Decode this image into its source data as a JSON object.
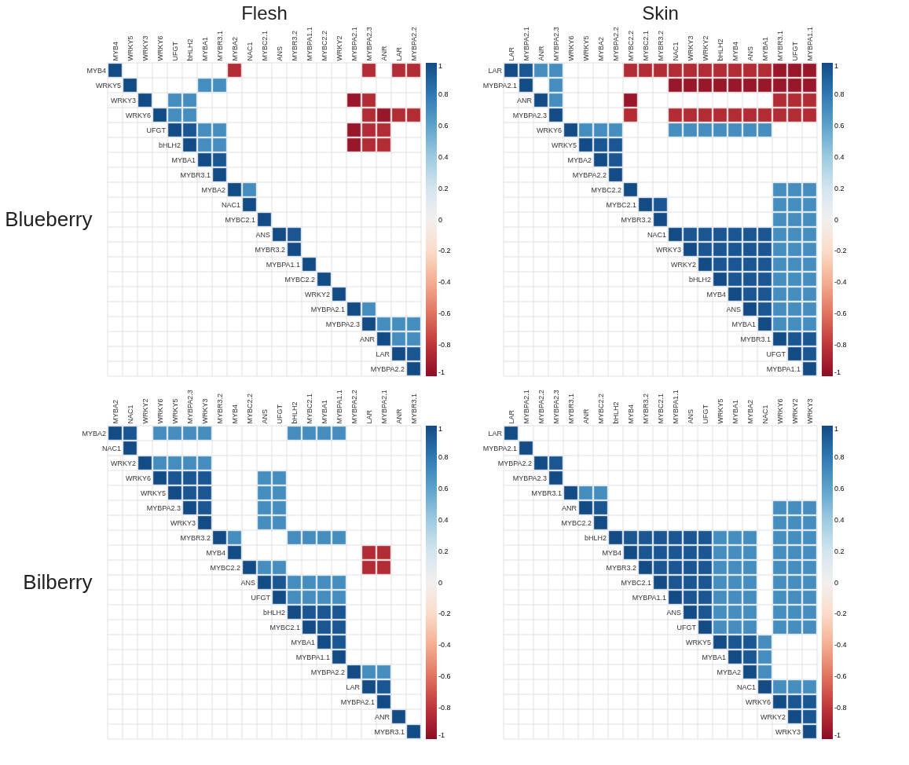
{
  "chart_data": [
    {
      "type": "heatmap",
      "title": "Flesh",
      "ylabel": "Blueberry",
      "grid": true,
      "clim": [
        -1,
        1
      ],
      "cticks": [
        -1,
        -0.8,
        -0.6,
        -0.4,
        -0.2,
        0,
        0.2,
        0.4,
        0.6,
        0.8,
        1
      ],
      "categories": [
        "MYB4",
        "WRKY5",
        "WRKY3",
        "WRKY6",
        "UFGT",
        "bHLH2",
        "MYBA1",
        "MYBR3.1",
        "MYBA2",
        "NAC1",
        "MYBC2.1",
        "ANS",
        "MYBR3.2",
        "MYBPA1.1",
        "MYBC2.2",
        "WRKY2",
        "MYBPA2.1",
        "MYBPA2.3",
        "ANR",
        "LAR",
        "MYBPA2.2"
      ],
      "y_categories": [
        "MYB4",
        "WRKY5",
        "WRKY3",
        "WRKY6",
        "UFGT",
        "bHLH2",
        "MYBA1",
        "MYBR3.1",
        "MYBA2",
        "NAC1",
        "MYBC2.1",
        "ANS",
        "MYBR3.2",
        "MYBPA1.1",
        "MYBC2.2",
        "WRKY2",
        "MYBPA2.1",
        "MYBPA2.3",
        "ANR",
        "LAR",
        "MYBPA2.2"
      ],
      "cells": [
        [
          1,
          null,
          null,
          null,
          null,
          null,
          null,
          null,
          -0.85,
          null,
          null,
          null,
          null,
          null,
          null,
          null,
          null,
          -0.85,
          null,
          -0.85,
          -0.85
        ],
        [
          null,
          1,
          null,
          null,
          null,
          null,
          0.7,
          0.7,
          null,
          null,
          null,
          null,
          null,
          null,
          null,
          null,
          null,
          null,
          null,
          null,
          null
        ],
        [
          null,
          null,
          1,
          null,
          0.7,
          0.7,
          null,
          null,
          null,
          null,
          null,
          null,
          null,
          null,
          null,
          null,
          -0.95,
          -0.85,
          null,
          null,
          null
        ],
        [
          null,
          null,
          null,
          1,
          0.7,
          0.7,
          null,
          null,
          null,
          null,
          null,
          null,
          null,
          null,
          null,
          null,
          null,
          -0.85,
          -0.95,
          -0.85,
          -0.85
        ],
        [
          null,
          null,
          null,
          null,
          1,
          0.95,
          0.7,
          0.7,
          null,
          null,
          null,
          null,
          null,
          null,
          null,
          null,
          -0.95,
          -0.85,
          -0.85,
          null,
          null
        ],
        [
          null,
          null,
          null,
          null,
          null,
          1,
          0.7,
          0.7,
          null,
          null,
          null,
          null,
          null,
          null,
          null,
          null,
          -0.95,
          -0.85,
          -0.85,
          null,
          null
        ],
        [
          null,
          null,
          null,
          null,
          null,
          null,
          1,
          0.95,
          null,
          null,
          null,
          null,
          null,
          null,
          null,
          null,
          null,
          null,
          null,
          null,
          null
        ],
        [
          null,
          null,
          null,
          null,
          null,
          null,
          null,
          1,
          null,
          null,
          null,
          null,
          null,
          null,
          null,
          null,
          null,
          null,
          null,
          null,
          null
        ],
        [
          null,
          null,
          null,
          null,
          null,
          null,
          null,
          null,
          1,
          0.7,
          null,
          null,
          null,
          null,
          null,
          null,
          null,
          null,
          null,
          null,
          null
        ],
        [
          null,
          null,
          null,
          null,
          null,
          null,
          null,
          null,
          null,
          1,
          null,
          null,
          null,
          null,
          null,
          null,
          null,
          null,
          null,
          null,
          null
        ],
        [
          null,
          null,
          null,
          null,
          null,
          null,
          null,
          null,
          null,
          null,
          1,
          null,
          null,
          null,
          null,
          null,
          null,
          null,
          null,
          null,
          null
        ],
        [
          null,
          null,
          null,
          null,
          null,
          null,
          null,
          null,
          null,
          null,
          null,
          1,
          0.95,
          null,
          null,
          null,
          null,
          null,
          null,
          null,
          null
        ],
        [
          null,
          null,
          null,
          null,
          null,
          null,
          null,
          null,
          null,
          null,
          null,
          null,
          1,
          null,
          null,
          null,
          null,
          null,
          null,
          null,
          null
        ],
        [
          null,
          null,
          null,
          null,
          null,
          null,
          null,
          null,
          null,
          null,
          null,
          null,
          null,
          1,
          null,
          null,
          null,
          null,
          null,
          null,
          null
        ],
        [
          null,
          null,
          null,
          null,
          null,
          null,
          null,
          null,
          null,
          null,
          null,
          null,
          null,
          null,
          1,
          null,
          null,
          null,
          null,
          null,
          null
        ],
        [
          null,
          null,
          null,
          null,
          null,
          null,
          null,
          null,
          null,
          null,
          null,
          null,
          null,
          null,
          null,
          1,
          null,
          null,
          null,
          null,
          null
        ],
        [
          null,
          null,
          null,
          null,
          null,
          null,
          null,
          null,
          null,
          null,
          null,
          null,
          null,
          null,
          null,
          null,
          1,
          0.7,
          null,
          null,
          null
        ],
        [
          null,
          null,
          null,
          null,
          null,
          null,
          null,
          null,
          null,
          null,
          null,
          null,
          null,
          null,
          null,
          null,
          null,
          1,
          0.7,
          0.7,
          0.7
        ],
        [
          null,
          null,
          null,
          null,
          null,
          null,
          null,
          null,
          null,
          null,
          null,
          null,
          null,
          null,
          null,
          null,
          null,
          null,
          1,
          0.7,
          0.7
        ],
        [
          null,
          null,
          null,
          null,
          null,
          null,
          null,
          null,
          null,
          null,
          null,
          null,
          null,
          null,
          null,
          null,
          null,
          null,
          null,
          1,
          0.95
        ],
        [
          null,
          null,
          null,
          null,
          null,
          null,
          null,
          null,
          null,
          null,
          null,
          null,
          null,
          null,
          null,
          null,
          null,
          null,
          null,
          null,
          1
        ]
      ]
    },
    {
      "type": "heatmap",
      "title": "Skin",
      "grid": true,
      "clim": [
        -1,
        1
      ],
      "cticks": [
        -1,
        -0.8,
        -0.6,
        -0.4,
        -0.2,
        0,
        0.2,
        0.4,
        0.6,
        0.8,
        1
      ],
      "categories": [
        "LAR",
        "MYBPA2.1",
        "ANR",
        "MYBPA2.3",
        "WRKY6",
        "WRKY5",
        "MYBA2",
        "MYBPA2.2",
        "MYBC2.2",
        "MYBC2.1",
        "MYBR3.2",
        "NAC1",
        "WRKY3",
        "WRKY2",
        "bHLH2",
        "MYB4",
        "ANS",
        "MYBA1",
        "MYBR3.1",
        "UFGT",
        "MYBPA1.1"
      ],
      "y_categories": [
        "LAR",
        "MYBPA2.1",
        "ANR",
        "MYBPA2.3",
        "WRKY6",
        "WRKY5",
        "MYBA2",
        "MYBPA2.2",
        "MYBC2.2",
        "MYBC2.1",
        "MYBR3.2",
        "NAC1",
        "WRKY3",
        "WRKY2",
        "bHLH2",
        "MYB4",
        "ANS",
        "MYBA1",
        "MYBR3.1",
        "UFGT",
        "MYBPA1.1"
      ],
      "cells": [
        [
          1,
          0.95,
          0.7,
          0.7,
          null,
          null,
          null,
          null,
          -0.85,
          -0.85,
          -0.85,
          -0.85,
          -0.85,
          -0.85,
          -0.85,
          -0.85,
          -0.85,
          -0.85,
          -0.95,
          -0.95,
          -0.95
        ],
        [
          null,
          1,
          null,
          0.7,
          null,
          null,
          null,
          null,
          null,
          null,
          null,
          -0.95,
          -0.95,
          -0.95,
          -0.95,
          -0.95,
          -0.95,
          -0.95,
          -0.95,
          -0.95,
          -0.95
        ],
        [
          null,
          null,
          1,
          0.7,
          null,
          null,
          null,
          null,
          -0.95,
          null,
          null,
          null,
          null,
          null,
          null,
          null,
          null,
          null,
          -0.85,
          -0.85,
          -0.85
        ],
        [
          null,
          null,
          null,
          1,
          null,
          null,
          null,
          null,
          -0.85,
          null,
          null,
          -0.85,
          -0.85,
          -0.85,
          -0.85,
          -0.85,
          -0.85,
          -0.85,
          -0.85,
          -0.85,
          -0.85
        ],
        [
          null,
          null,
          null,
          null,
          1,
          0.7,
          0.7,
          0.7,
          null,
          null,
          null,
          0.7,
          0.7,
          0.7,
          0.7,
          0.7,
          0.7,
          0.7,
          null,
          null,
          null
        ],
        [
          null,
          null,
          null,
          null,
          null,
          1,
          0.95,
          0.95,
          null,
          null,
          null,
          null,
          null,
          null,
          null,
          null,
          null,
          null,
          null,
          null,
          null
        ],
        [
          null,
          null,
          null,
          null,
          null,
          null,
          1,
          0.95,
          null,
          null,
          null,
          null,
          null,
          null,
          null,
          null,
          null,
          null,
          null,
          null,
          null
        ],
        [
          null,
          null,
          null,
          null,
          null,
          null,
          null,
          1,
          null,
          null,
          null,
          null,
          null,
          null,
          null,
          null,
          null,
          null,
          null,
          null,
          null
        ],
        [
          null,
          null,
          null,
          null,
          null,
          null,
          null,
          null,
          1,
          null,
          null,
          null,
          null,
          null,
          null,
          null,
          null,
          null,
          0.7,
          0.7,
          0.7
        ],
        [
          null,
          null,
          null,
          null,
          null,
          null,
          null,
          null,
          null,
          1,
          0.95,
          null,
          null,
          null,
          null,
          null,
          null,
          null,
          0.7,
          0.7,
          0.7
        ],
        [
          null,
          null,
          null,
          null,
          null,
          null,
          null,
          null,
          null,
          null,
          1,
          null,
          null,
          null,
          null,
          null,
          null,
          null,
          0.7,
          0.7,
          0.7
        ],
        [
          null,
          null,
          null,
          null,
          null,
          null,
          null,
          null,
          null,
          null,
          null,
          1,
          0.95,
          0.95,
          0.95,
          0.95,
          0.95,
          0.95,
          0.7,
          0.7,
          0.7
        ],
        [
          null,
          null,
          null,
          null,
          null,
          null,
          null,
          null,
          null,
          null,
          null,
          null,
          1,
          0.95,
          0.95,
          0.95,
          0.95,
          0.95,
          0.7,
          0.7,
          0.7
        ],
        [
          null,
          null,
          null,
          null,
          null,
          null,
          null,
          null,
          null,
          null,
          null,
          null,
          null,
          1,
          0.95,
          0.95,
          0.95,
          0.95,
          0.7,
          0.7,
          0.7
        ],
        [
          null,
          null,
          null,
          null,
          null,
          null,
          null,
          null,
          null,
          null,
          null,
          null,
          null,
          null,
          1,
          0.95,
          0.95,
          0.95,
          0.7,
          0.7,
          0.7
        ],
        [
          null,
          null,
          null,
          null,
          null,
          null,
          null,
          null,
          null,
          null,
          null,
          null,
          null,
          null,
          null,
          1,
          0.95,
          0.95,
          0.7,
          0.7,
          0.7
        ],
        [
          null,
          null,
          null,
          null,
          null,
          null,
          null,
          null,
          null,
          null,
          null,
          null,
          null,
          null,
          null,
          null,
          1,
          0.95,
          0.7,
          0.7,
          0.7
        ],
        [
          null,
          null,
          null,
          null,
          null,
          null,
          null,
          null,
          null,
          null,
          null,
          null,
          null,
          null,
          null,
          null,
          null,
          1,
          0.7,
          0.7,
          0.7
        ],
        [
          null,
          null,
          null,
          null,
          null,
          null,
          null,
          null,
          null,
          null,
          null,
          null,
          null,
          null,
          null,
          null,
          null,
          null,
          1,
          0.95,
          0.95
        ],
        [
          null,
          null,
          null,
          null,
          null,
          null,
          null,
          null,
          null,
          null,
          null,
          null,
          null,
          null,
          null,
          null,
          null,
          null,
          null,
          1,
          0.95
        ],
        [
          null,
          null,
          null,
          null,
          null,
          null,
          null,
          null,
          null,
          null,
          null,
          null,
          null,
          null,
          null,
          null,
          null,
          null,
          null,
          null,
          1
        ]
      ]
    },
    {
      "type": "heatmap",
      "ylabel": "Bilberry",
      "grid": true,
      "clim": [
        -1,
        1
      ],
      "cticks": [
        -1,
        -0.8,
        -0.6,
        -0.4,
        -0.2,
        0,
        0.2,
        0.4,
        0.6,
        0.8,
        1
      ],
      "categories": [
        "MYBA2",
        "NAC1",
        "WRKY2",
        "WRKY6",
        "WRKY5",
        "MYBPA2.3",
        "WRKY3",
        "MYBR3.2",
        "MYB4",
        "MYBC2.2",
        "ANS",
        "UFGT",
        "bHLH2",
        "MYBC2.1",
        "MYBA1",
        "MYBPA1.1",
        "MYBPA2.2",
        "LAR",
        "MYBPA2.1",
        "ANR",
        "MYBR3.1"
      ],
      "y_categories": [
        "MYBA2",
        "NAC1",
        "WRKY2",
        "WRKY6",
        "WRKY5",
        "MYBPA2.3",
        "WRKY3",
        "MYBR3.2",
        "MYB4",
        "MYBC2.2",
        "ANS",
        "UFGT",
        "bHLH2",
        "MYBC2.1",
        "MYBA1",
        "MYBPA1.1",
        "MYBPA2.2",
        "LAR",
        "MYBPA2.1",
        "ANR",
        "MYBR3.1"
      ],
      "cells": [
        [
          1,
          0.95,
          null,
          0.7,
          0.7,
          0.7,
          0.7,
          null,
          null,
          null,
          null,
          null,
          0.7,
          0.7,
          0.7,
          0.7,
          null,
          null,
          null,
          null,
          null
        ],
        [
          null,
          1,
          null,
          null,
          null,
          null,
          null,
          null,
          null,
          null,
          null,
          null,
          null,
          null,
          null,
          null,
          null,
          null,
          null,
          null,
          null
        ],
        [
          null,
          null,
          1,
          0.7,
          0.7,
          0.7,
          0.7,
          null,
          null,
          null,
          null,
          null,
          null,
          null,
          null,
          null,
          null,
          null,
          null,
          null,
          null
        ],
        [
          null,
          null,
          null,
          1,
          0.95,
          0.95,
          0.95,
          null,
          null,
          null,
          0.7,
          0.7,
          null,
          null,
          null,
          null,
          null,
          null,
          null,
          null,
          null
        ],
        [
          null,
          null,
          null,
          null,
          1,
          0.95,
          0.95,
          null,
          null,
          null,
          0.7,
          0.7,
          null,
          null,
          null,
          null,
          null,
          null,
          null,
          null,
          null
        ],
        [
          null,
          null,
          null,
          null,
          null,
          1,
          0.95,
          null,
          null,
          null,
          0.7,
          0.7,
          null,
          null,
          null,
          null,
          null,
          null,
          null,
          null,
          null
        ],
        [
          null,
          null,
          null,
          null,
          null,
          null,
          1,
          null,
          null,
          null,
          0.7,
          0.7,
          null,
          null,
          null,
          null,
          null,
          null,
          null,
          null,
          null
        ],
        [
          null,
          null,
          null,
          null,
          null,
          null,
          null,
          1,
          0.7,
          null,
          null,
          null,
          0.7,
          0.7,
          0.7,
          0.7,
          null,
          null,
          null,
          null,
          null
        ],
        [
          null,
          null,
          null,
          null,
          null,
          null,
          null,
          null,
          1,
          null,
          null,
          null,
          null,
          null,
          null,
          null,
          null,
          -0.85,
          -0.85,
          null,
          null
        ],
        [
          null,
          null,
          null,
          null,
          null,
          null,
          null,
          null,
          null,
          1,
          0.7,
          0.7,
          null,
          null,
          null,
          null,
          null,
          -0.85,
          -0.85,
          null,
          null
        ],
        [
          null,
          null,
          null,
          null,
          null,
          null,
          null,
          null,
          null,
          null,
          1,
          0.95,
          0.7,
          0.7,
          0.7,
          0.7,
          null,
          null,
          null,
          null,
          null
        ],
        [
          null,
          null,
          null,
          null,
          null,
          null,
          null,
          null,
          null,
          null,
          null,
          1,
          0.7,
          0.7,
          0.7,
          0.7,
          null,
          null,
          null,
          null,
          null
        ],
        [
          null,
          null,
          null,
          null,
          null,
          null,
          null,
          null,
          null,
          null,
          null,
          null,
          1,
          0.95,
          0.95,
          0.95,
          null,
          null,
          null,
          null,
          null
        ],
        [
          null,
          null,
          null,
          null,
          null,
          null,
          null,
          null,
          null,
          null,
          null,
          null,
          null,
          1,
          0.95,
          0.95,
          null,
          null,
          null,
          null,
          null
        ],
        [
          null,
          null,
          null,
          null,
          null,
          null,
          null,
          null,
          null,
          null,
          null,
          null,
          null,
          null,
          1,
          0.95,
          null,
          null,
          null,
          null,
          null
        ],
        [
          null,
          null,
          null,
          null,
          null,
          null,
          null,
          null,
          null,
          null,
          null,
          null,
          null,
          null,
          null,
          1,
          null,
          null,
          null,
          null,
          null
        ],
        [
          null,
          null,
          null,
          null,
          null,
          null,
          null,
          null,
          null,
          null,
          null,
          null,
          null,
          null,
          null,
          null,
          1,
          0.7,
          0.7,
          null,
          null
        ],
        [
          null,
          null,
          null,
          null,
          null,
          null,
          null,
          null,
          null,
          null,
          null,
          null,
          null,
          null,
          null,
          null,
          null,
          1,
          0.95,
          null,
          null
        ],
        [
          null,
          null,
          null,
          null,
          null,
          null,
          null,
          null,
          null,
          null,
          null,
          null,
          null,
          null,
          null,
          null,
          null,
          null,
          1,
          null,
          null
        ],
        [
          null,
          null,
          null,
          null,
          null,
          null,
          null,
          null,
          null,
          null,
          null,
          null,
          null,
          null,
          null,
          null,
          null,
          null,
          null,
          1,
          null
        ],
        [
          null,
          null,
          null,
          null,
          null,
          null,
          null,
          null,
          null,
          null,
          null,
          null,
          null,
          null,
          null,
          null,
          null,
          null,
          null,
          null,
          1
        ]
      ]
    },
    {
      "type": "heatmap",
      "grid": true,
      "clim": [
        -1,
        1
      ],
      "cticks": [
        -1,
        -0.8,
        -0.6,
        -0.4,
        -0.2,
        0,
        0.2,
        0.4,
        0.6,
        0.8,
        1
      ],
      "categories": [
        "LAR",
        "MYBPA2.1",
        "MYBPA2.2",
        "MYBPA2.3",
        "MYBR3.1",
        "ANR",
        "MYBC2.2",
        "bHLH2",
        "MYB4",
        "MYBR3.2",
        "MYBC2.1",
        "MYBPA1.1",
        "ANS",
        "UFGT",
        "WRKY5",
        "MYBA1",
        "MYBA2",
        "NAC1",
        "WRKY6",
        "WRKY2",
        "WRKY3"
      ],
      "y_categories": [
        "LAR",
        "MYBPA2.1",
        "MYBPA2.2",
        "MYBPA2.3",
        "MYBR3.1",
        "ANR",
        "MYBC2.2",
        "bHLH2",
        "MYB4",
        "MYBR3.2",
        "MYBC2.1",
        "MYBPA1.1",
        "ANS",
        "UFGT",
        "WRKY5",
        "MYBA1",
        "MYBA2",
        "NAC1",
        "WRKY6",
        "WRKY2",
        "WRKY3"
      ],
      "cells": [
        [
          1,
          null,
          null,
          null,
          null,
          null,
          null,
          null,
          null,
          null,
          null,
          null,
          null,
          null,
          null,
          null,
          null,
          null,
          null,
          null,
          null
        ],
        [
          null,
          1,
          null,
          null,
          null,
          null,
          null,
          null,
          null,
          null,
          null,
          null,
          null,
          null,
          null,
          null,
          null,
          null,
          null,
          null,
          null
        ],
        [
          null,
          null,
          1,
          0.95,
          null,
          null,
          null,
          null,
          null,
          null,
          null,
          null,
          null,
          null,
          null,
          null,
          null,
          null,
          null,
          null,
          null
        ],
        [
          null,
          null,
          null,
          1,
          null,
          null,
          null,
          null,
          null,
          null,
          null,
          null,
          null,
          null,
          null,
          null,
          null,
          null,
          null,
          null,
          null
        ],
        [
          null,
          null,
          null,
          null,
          1,
          0.7,
          0.7,
          null,
          null,
          null,
          null,
          null,
          null,
          null,
          null,
          null,
          null,
          null,
          null,
          null,
          null
        ],
        [
          null,
          null,
          null,
          null,
          null,
          1,
          0.95,
          null,
          null,
          null,
          null,
          null,
          null,
          null,
          null,
          null,
          null,
          null,
          0.7,
          0.7,
          0.7
        ],
        [
          null,
          null,
          null,
          null,
          null,
          null,
          1,
          null,
          null,
          null,
          null,
          null,
          null,
          null,
          null,
          null,
          null,
          null,
          0.7,
          0.7,
          0.7
        ],
        [
          null,
          null,
          null,
          null,
          null,
          null,
          null,
          1,
          0.95,
          0.95,
          0.95,
          0.95,
          0.95,
          0.95,
          0.7,
          0.7,
          0.7,
          null,
          0.7,
          0.7,
          0.7
        ],
        [
          null,
          null,
          null,
          null,
          null,
          null,
          null,
          null,
          1,
          0.95,
          0.95,
          0.95,
          0.95,
          0.95,
          0.7,
          0.7,
          0.7,
          null,
          0.7,
          0.7,
          0.7
        ],
        [
          null,
          null,
          null,
          null,
          null,
          null,
          null,
          null,
          null,
          1,
          0.95,
          0.95,
          0.95,
          0.95,
          0.7,
          0.7,
          0.7,
          null,
          0.7,
          0.7,
          0.7
        ],
        [
          null,
          null,
          null,
          null,
          null,
          null,
          null,
          null,
          null,
          null,
          1,
          0.95,
          0.95,
          0.95,
          0.7,
          0.7,
          0.7,
          null,
          0.7,
          0.7,
          0.7
        ],
        [
          null,
          null,
          null,
          null,
          null,
          null,
          null,
          null,
          null,
          null,
          null,
          1,
          0.95,
          0.95,
          0.7,
          0.7,
          0.7,
          null,
          0.7,
          0.7,
          0.7
        ],
        [
          null,
          null,
          null,
          null,
          null,
          null,
          null,
          null,
          null,
          null,
          null,
          null,
          1,
          0.95,
          0.7,
          0.7,
          0.7,
          null,
          0.7,
          0.7,
          0.7
        ],
        [
          null,
          null,
          null,
          null,
          null,
          null,
          null,
          null,
          null,
          null,
          null,
          null,
          null,
          1,
          0.7,
          0.7,
          0.7,
          null,
          0.7,
          0.7,
          0.7
        ],
        [
          null,
          null,
          null,
          null,
          null,
          null,
          null,
          null,
          null,
          null,
          null,
          null,
          null,
          null,
          1,
          0.95,
          0.95,
          0.7,
          null,
          null,
          null
        ],
        [
          null,
          null,
          null,
          null,
          null,
          null,
          null,
          null,
          null,
          null,
          null,
          null,
          null,
          null,
          null,
          1,
          0.95,
          0.7,
          null,
          null,
          null
        ],
        [
          null,
          null,
          null,
          null,
          null,
          null,
          null,
          null,
          null,
          null,
          null,
          null,
          null,
          null,
          null,
          null,
          1,
          0.7,
          null,
          null,
          null
        ],
        [
          null,
          null,
          null,
          null,
          null,
          null,
          null,
          null,
          null,
          null,
          null,
          null,
          null,
          null,
          null,
          null,
          null,
          1,
          0.7,
          0.7,
          0.7
        ],
        [
          null,
          null,
          null,
          null,
          null,
          null,
          null,
          null,
          null,
          null,
          null,
          null,
          null,
          null,
          null,
          null,
          null,
          null,
          1,
          0.95,
          0.95
        ],
        [
          null,
          null,
          null,
          null,
          null,
          null,
          null,
          null,
          null,
          null,
          null,
          null,
          null,
          null,
          null,
          null,
          null,
          null,
          null,
          1,
          0.95
        ],
        [
          null,
          null,
          null,
          null,
          null,
          null,
          null,
          null,
          null,
          null,
          null,
          null,
          null,
          null,
          null,
          null,
          null,
          null,
          null,
          null,
          1
        ]
      ]
    }
  ]
}
